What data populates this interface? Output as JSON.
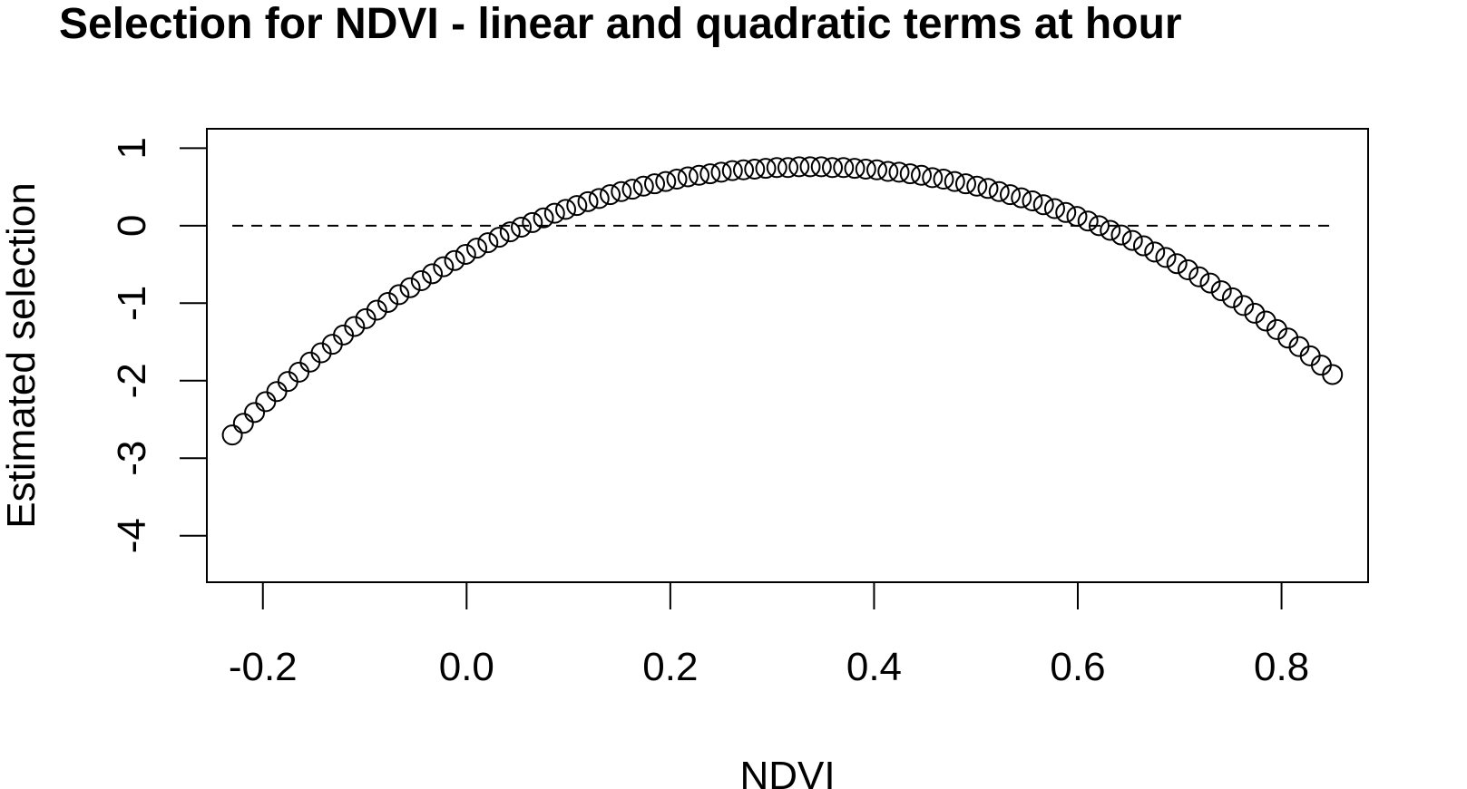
{
  "chart_data": {
    "type": "scatter",
    "title": "Selection for NDVI - linear and quadratic terms at hour",
    "xlabel": "NDVI",
    "ylabel": "Estimated selection",
    "xlim": [
      -0.255,
      0.885
    ],
    "ylim": [
      -4.6,
      1.25
    ],
    "x_ticks": [
      -0.2,
      0.0,
      0.2,
      0.4,
      0.6,
      0.8
    ],
    "x_tick_labels": [
      "-0.2",
      "0.0",
      "0.2",
      "0.4",
      "0.6",
      "0.8"
    ],
    "y_ticks": [
      -4,
      -3,
      -2,
      -1,
      0,
      1
    ],
    "y_tick_labels": [
      "-4",
      "-3",
      "-2",
      "-1",
      "0",
      "1"
    ],
    "reference_line": {
      "y": 0,
      "x_from": -0.23,
      "x_to": 0.85,
      "style": "dashed"
    },
    "marker": "open-circle",
    "series": [
      {
        "x_start": -0.23,
        "x_end": 0.85,
        "n_points": 100,
        "values": [
          -2.7,
          -2.55,
          -2.41,
          -2.27,
          -2.14,
          -2.01,
          -1.89,
          -1.76,
          -1.64,
          -1.53,
          -1.41,
          -1.3,
          -1.2,
          -1.09,
          -0.99,
          -0.89,
          -0.8,
          -0.71,
          -0.62,
          -0.53,
          -0.45,
          -0.37,
          -0.29,
          -0.22,
          -0.15,
          -0.08,
          -0.02,
          0.04,
          0.1,
          0.16,
          0.21,
          0.26,
          0.31,
          0.35,
          0.4,
          0.44,
          0.47,
          0.51,
          0.54,
          0.57,
          0.6,
          0.63,
          0.65,
          0.67,
          0.69,
          0.71,
          0.72,
          0.73,
          0.74,
          0.75,
          0.75,
          0.76,
          0.76,
          0.76,
          0.75,
          0.75,
          0.74,
          0.73,
          0.72,
          0.7,
          0.69,
          0.67,
          0.65,
          0.62,
          0.6,
          0.57,
          0.54,
          0.51,
          0.48,
          0.44,
          0.4,
          0.36,
          0.32,
          0.27,
          0.22,
          0.17,
          0.12,
          0.06,
          0.0,
          -0.06,
          -0.12,
          -0.19,
          -0.26,
          -0.34,
          -0.41,
          -0.49,
          -0.57,
          -0.66,
          -0.74,
          -0.84,
          -0.93,
          -1.03,
          -1.13,
          -1.23,
          -1.34,
          -1.45,
          -1.56,
          -1.68,
          -1.8,
          -1.92
        ]
      }
    ]
  }
}
